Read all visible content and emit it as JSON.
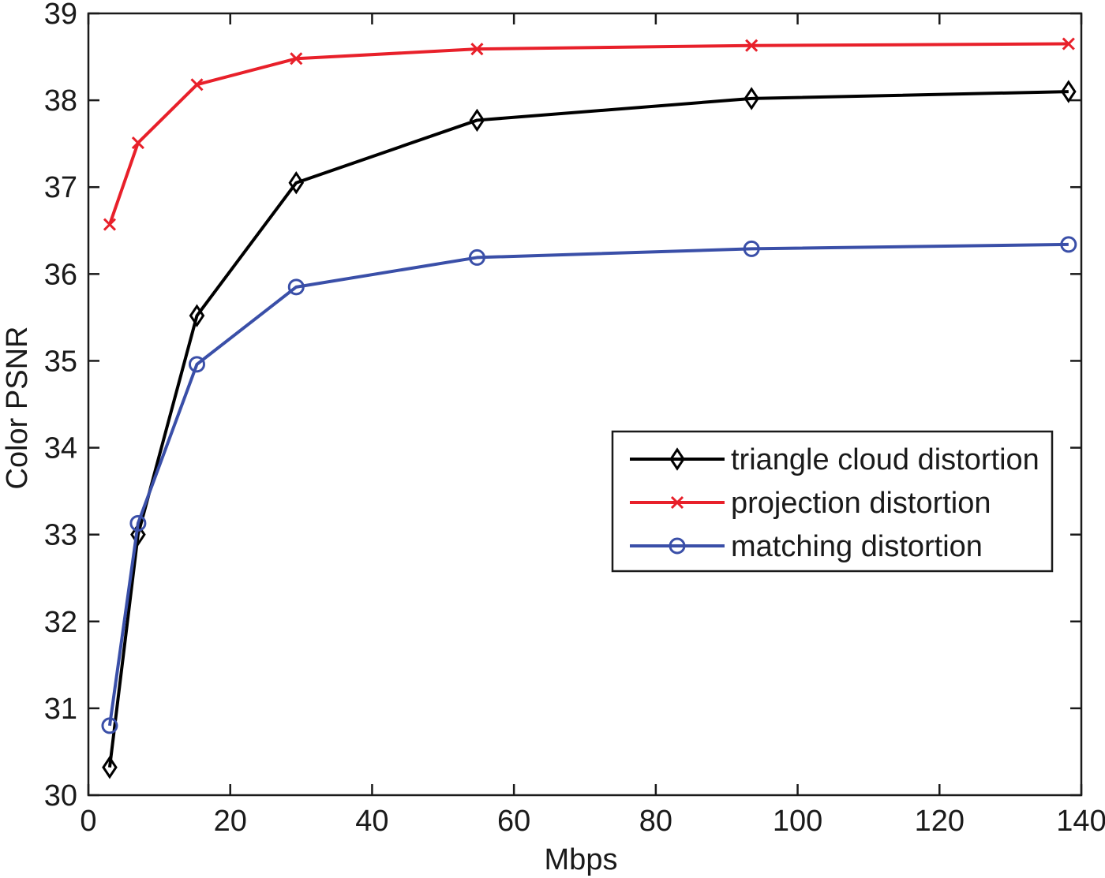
{
  "chart_data": {
    "type": "line",
    "title": "",
    "xlabel": "Mbps",
    "ylabel": "Color PSNR",
    "xlim": [
      0,
      140
    ],
    "ylim": [
      30,
      39
    ],
    "xticks": [
      0,
      20,
      40,
      60,
      80,
      100,
      120,
      140
    ],
    "yticks": [
      30,
      31,
      32,
      33,
      34,
      35,
      36,
      37,
      38,
      39
    ],
    "grid": false,
    "legend_position": "center-right",
    "series": [
      {
        "name": "triangle cloud distortion",
        "color": "#000000",
        "marker": "diamond",
        "x": [
          3,
          7,
          15.3,
          29.3,
          54.8,
          93.5,
          138.2
        ],
        "y": [
          30.32,
          33.0,
          35.52,
          37.05,
          37.77,
          38.02,
          38.1
        ]
      },
      {
        "name": "projection distortion",
        "color": "#e8202a",
        "marker": "x",
        "x": [
          3,
          7,
          15.3,
          29.3,
          54.8,
          93.5,
          138.2
        ],
        "y": [
          36.57,
          37.51,
          38.18,
          38.48,
          38.59,
          38.63,
          38.65
        ]
      },
      {
        "name": "matching distortion",
        "color": "#3a4fa8",
        "marker": "circle",
        "x": [
          3,
          7,
          15.3,
          29.3,
          54.8,
          93.5,
          138.2
        ],
        "y": [
          30.8,
          33.13,
          34.96,
          35.85,
          36.19,
          36.29,
          36.34
        ]
      }
    ]
  }
}
